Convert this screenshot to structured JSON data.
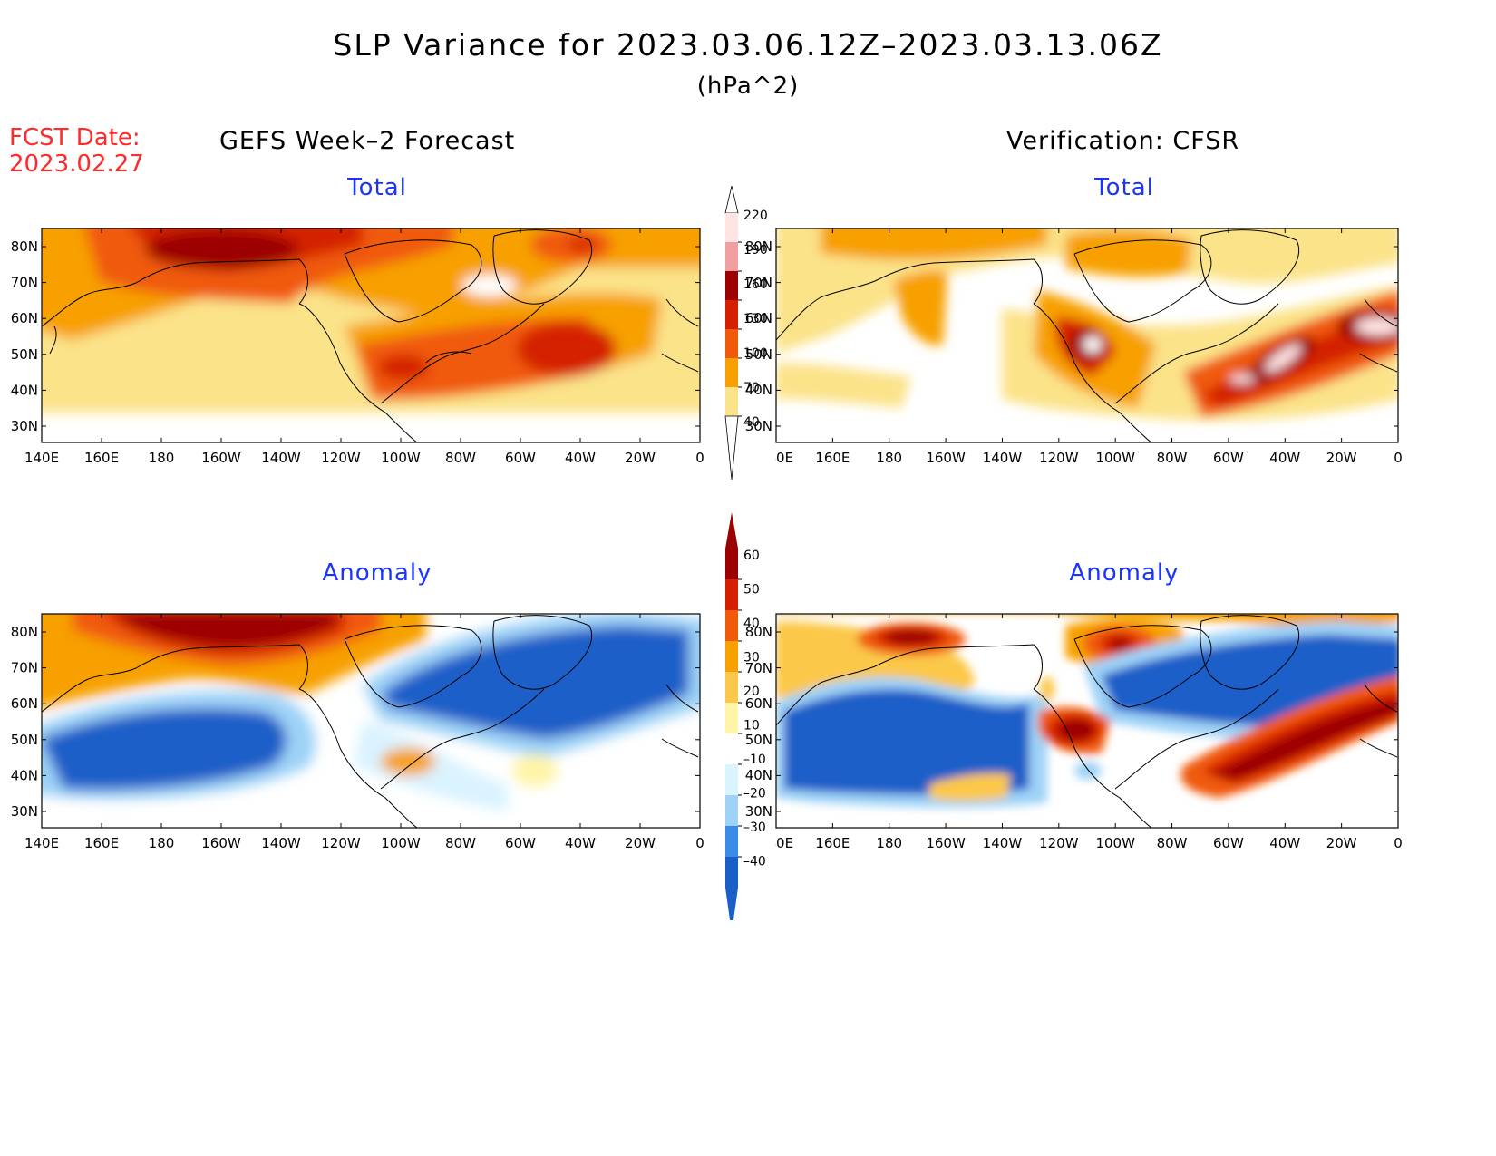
{
  "header": {
    "title": "SLP Variance for 2023.03.06.12Z–2023.03.13.06Z",
    "units": "(hPa^2)",
    "fcst_label": "FCST Date:",
    "fcst_date": "2023.02.27"
  },
  "columns": {
    "left": "GEFS Week–2 Forecast",
    "right": "Verification: CFSR"
  },
  "panels": {
    "total": "Total",
    "anomaly": "Anomaly"
  },
  "axes": {
    "lon_labels": [
      "140E",
      "160E",
      "180",
      "160W",
      "140W",
      "120W",
      "100W",
      "80W",
      "60W",
      "40W",
      "20W",
      "0"
    ],
    "lat_labels": [
      "80N",
      "70N",
      "60N",
      "50N",
      "40N",
      "30N"
    ]
  },
  "colorbars": {
    "total": {
      "labels": [
        "220",
        "190",
        "160",
        "130",
        "100",
        "70",
        "40"
      ],
      "colors": [
        "#ffe4e4",
        "#f0a0a0",
        "#9c0000",
        "#d42000",
        "#f05a0a",
        "#f7a000",
        "#fbe38a"
      ]
    },
    "anomaly": {
      "labels": [
        "60",
        "50",
        "40",
        "30",
        "20",
        "10",
        "–10",
        "–20",
        "–30",
        "–40"
      ],
      "colors": [
        "#9c0000",
        "#d42000",
        "#f05a0a",
        "#f7a000",
        "#fbc84a",
        "#fff4a8",
        "#ffffff",
        "#d9f3ff",
        "#9ed2f7",
        "#3a8ae8",
        "#1a5ec8"
      ]
    }
  }
}
